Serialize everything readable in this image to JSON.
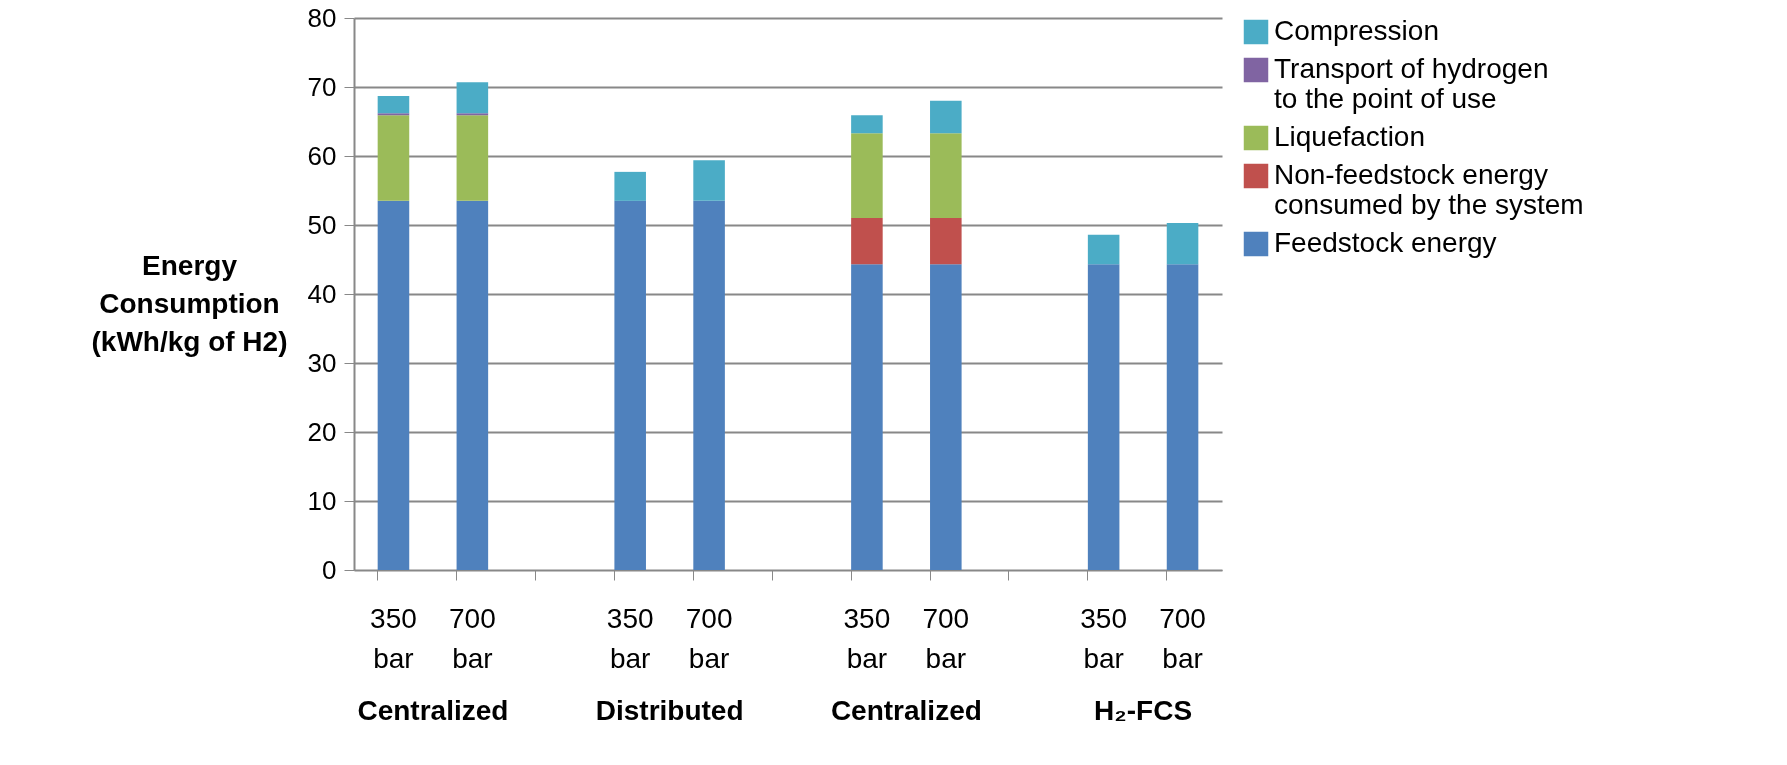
{
  "chart_data": {
    "type": "bar",
    "stacked": true,
    "ylabel": "Energy Consumption (kWh/kg of H2)",
    "categories": [
      "350 bar",
      "700 bar",
      null,
      "350 bar",
      "700 bar",
      null,
      "350 bar",
      "700 bar",
      null,
      "350 bar",
      "700 bar"
    ],
    "series": [
      {
        "name": "Feedstock energy",
        "color": "#4f81bd",
        "values": [
          53.5,
          53.5,
          null,
          53.5,
          53.5,
          null,
          44.3,
          44.3,
          null,
          44.3,
          44.3
        ]
      },
      {
        "name": "Non-feedstock energy consumed by the system",
        "color": "#c0504d",
        "values": [
          null,
          null,
          null,
          null,
          null,
          null,
          6.7,
          6.7,
          null,
          null,
          null
        ]
      },
      {
        "name": "Liquefaction",
        "color": "#9bbb59",
        "values": [
          12.4,
          12.4,
          null,
          null,
          null,
          null,
          12.3,
          12.3,
          null,
          null,
          null
        ]
      },
      {
        "name": "Transport of hydrogen to the point of use",
        "color": "#8064a2",
        "values": [
          0.3,
          0.3,
          null,
          null,
          null,
          null,
          null,
          null,
          null,
          null,
          null
        ]
      },
      {
        "name": "Compression",
        "color": "#4bacc6",
        "values": [
          2.5,
          4.5,
          null,
          4.2,
          5.9,
          null,
          2.6,
          4.7,
          null,
          4.3,
          6.0
        ]
      }
    ],
    "annotations": [
      "Centralized",
      "Distributed",
      "Centralized",
      "H₂-FCS"
    ],
    "ylim": [
      0,
      80
    ],
    "yticks": [
      0,
      10,
      20,
      30,
      40,
      50,
      60,
      70,
      80
    ],
    "grid": "y",
    "legend": "right"
  }
}
